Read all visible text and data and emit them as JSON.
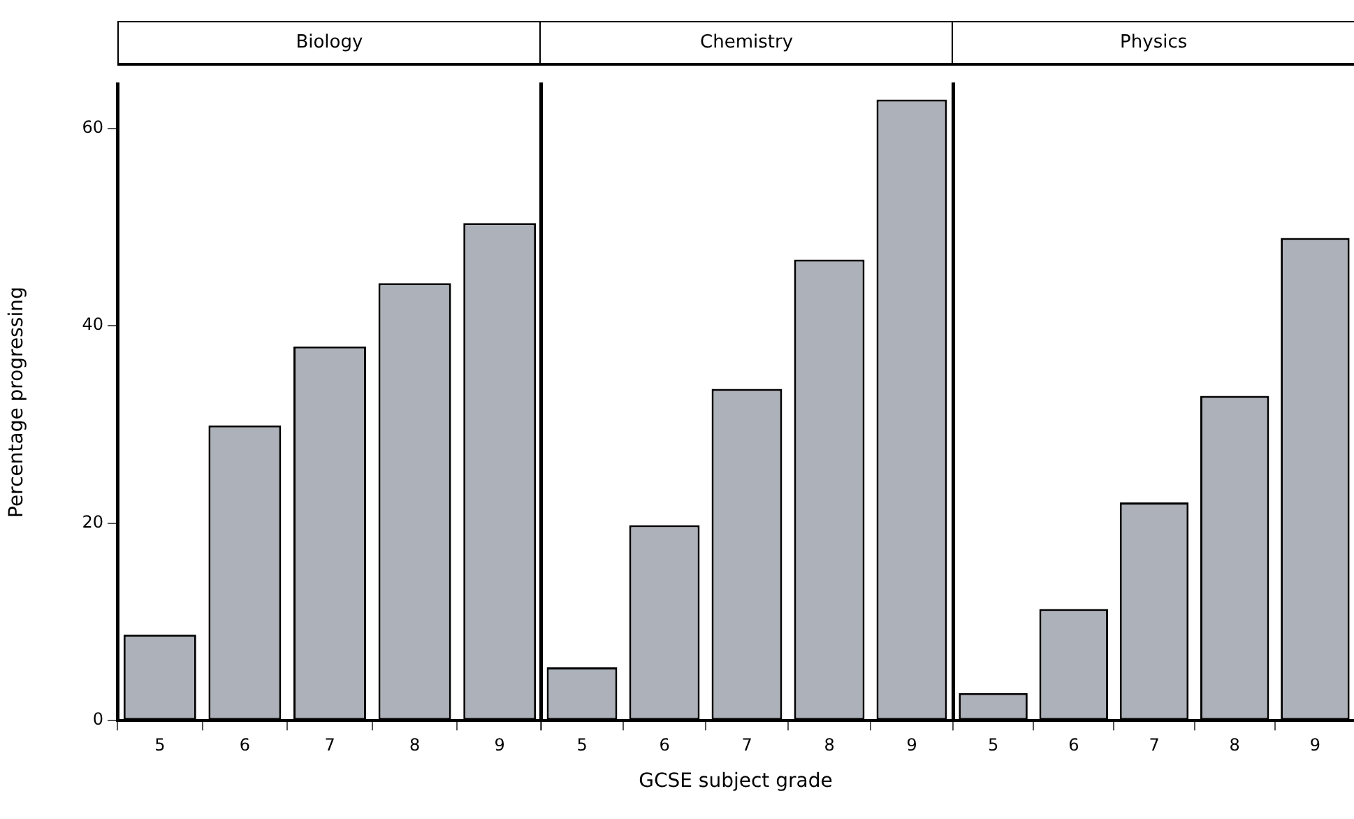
{
  "chart_data": [
    {
      "type": "bar",
      "title": "Biology",
      "ylabel": "Percentage progressing",
      "categories": [
        "5",
        "6",
        "7",
        "8",
        "9"
      ],
      "values": [
        8.7,
        29.9,
        37.9,
        44.3,
        50.4
      ],
      "color": "#adb1b9",
      "ylim": [
        0,
        64.5
      ],
      "yticks": [
        0,
        20,
        40,
        60
      ],
      "grid": false,
      "legend": false
    },
    {
      "type": "bar",
      "title": "Chemistry",
      "xlabel": "GCSE subject grade",
      "categories": [
        "5",
        "6",
        "7",
        "8",
        "9"
      ],
      "values": [
        5.4,
        19.8,
        33.6,
        46.7,
        62.9
      ],
      "color": "#adb1b9",
      "ylim": [
        0,
        64.5
      ],
      "yticks": [
        0,
        20,
        40,
        60
      ],
      "grid": false,
      "legend": false,
      "tick_labels": "x"
    },
    {
      "type": "bar",
      "title": "Physics",
      "categories": [
        "5",
        "6",
        "7",
        "8",
        "9"
      ],
      "values": [
        2.8,
        11.3,
        22.1,
        32.9,
        48.9
      ],
      "color": "#adb1b9",
      "ylim": [
        0,
        64.5
      ],
      "yticks": [
        0,
        20,
        40,
        60
      ],
      "grid": false,
      "legend": false,
      "tick_labels": "x"
    }
  ]
}
